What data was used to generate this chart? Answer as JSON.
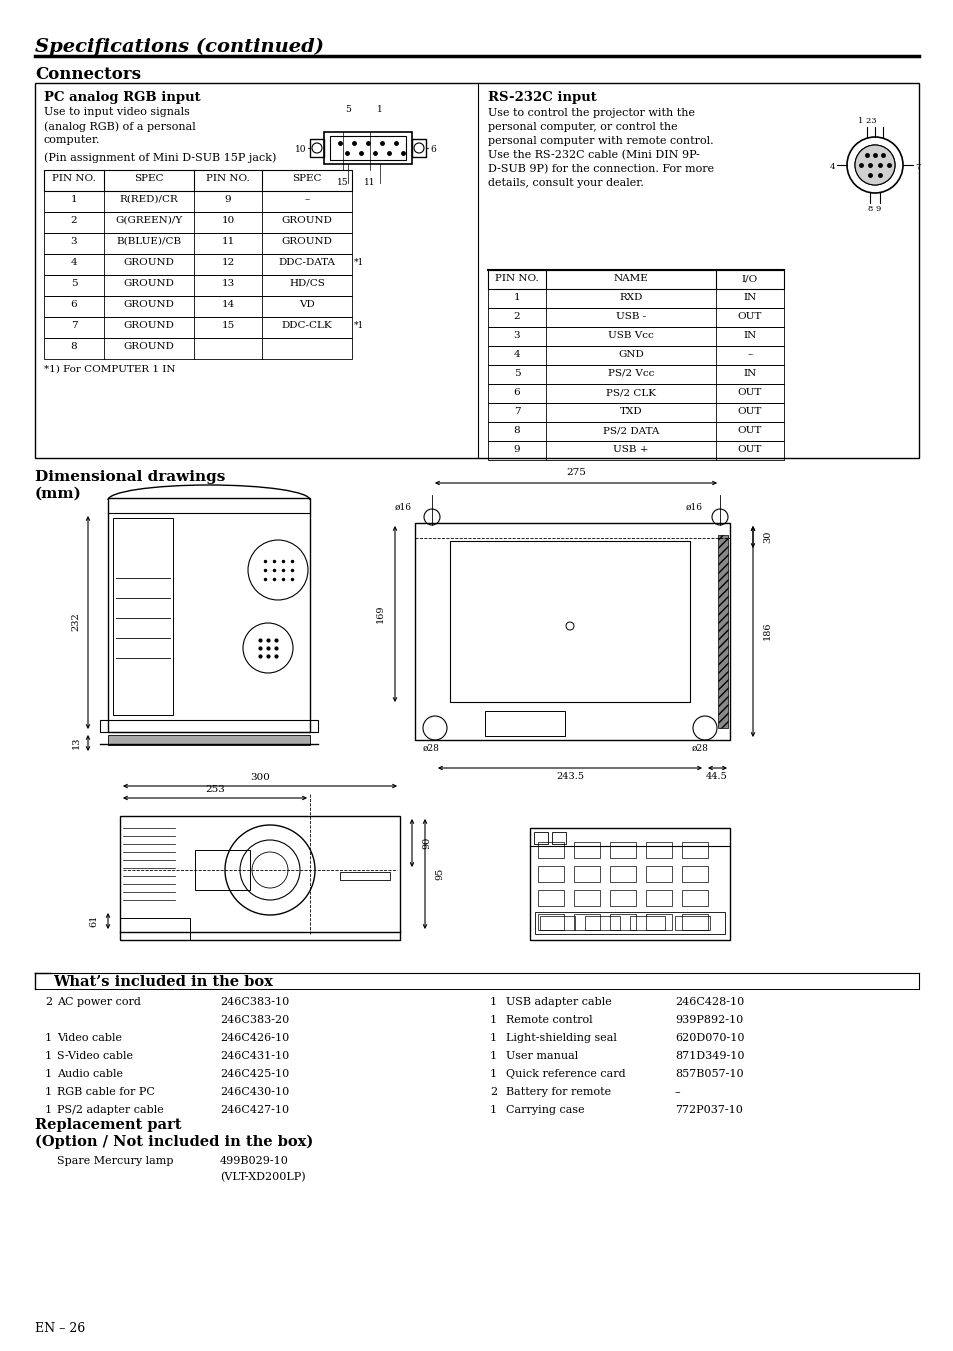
{
  "title": "Specifications (continued)",
  "page_label": "EN – 26",
  "section_connectors": "Connectors",
  "pc_rgb_title": "PC analog RGB input",
  "pc_rgb_desc_lines": [
    "Use to input video signals",
    "(analog RGB) of a personal",
    "computer."
  ],
  "pc_pin_assign": "(Pin assignment of Mini D-SUB 15P jack)",
  "pc_table_headers": [
    "PIN NO.",
    "SPEC",
    "PIN NO.",
    "SPEC"
  ],
  "pc_table_rows": [
    [
      "1",
      "R(RED)/CR",
      "9",
      "–"
    ],
    [
      "2",
      "G(GREEN)/Y",
      "10",
      "GROUND"
    ],
    [
      "3",
      "B(BLUE)/CB",
      "11",
      "GROUND"
    ],
    [
      "4",
      "GROUND",
      "12",
      "DDC-DATA"
    ],
    [
      "5",
      "GROUND",
      "13",
      "HD/CS"
    ],
    [
      "6",
      "GROUND",
      "14",
      "VD"
    ],
    [
      "7",
      "GROUND",
      "15",
      "DDC-CLK"
    ],
    [
      "8",
      "GROUND",
      "",
      ""
    ]
  ],
  "pc_table_asterisk_rows": [
    3,
    6
  ],
  "pc_footnote": "*1) For COMPUTER 1 IN",
  "rs232_title": "RS-232C input",
  "rs232_desc_lines": [
    "Use to control the projector with the",
    "personal computer, or control the",
    "personal computer with remote control.",
    "Use the RS-232C cable (Mini DIN 9P-",
    "D-SUB 9P) for the connection. For more",
    "details, consult your dealer."
  ],
  "rs232_table_headers": [
    "PIN NO.",
    "NAME",
    "I/O"
  ],
  "rs232_table_rows": [
    [
      "1",
      "RXD",
      "IN"
    ],
    [
      "2",
      "USB -",
      "OUT"
    ],
    [
      "3",
      "USB Vcc",
      "IN"
    ],
    [
      "4",
      "GND",
      "–"
    ],
    [
      "5",
      "PS/2 Vcc",
      "IN"
    ],
    [
      "6",
      "PS/2 CLK",
      "OUT"
    ],
    [
      "7",
      "TXD",
      "OUT"
    ],
    [
      "8",
      "PS/2 DATA",
      "OUT"
    ],
    [
      "9",
      "USB +",
      "OUT"
    ]
  ],
  "section_dimensional": "Dimensional drawings",
  "section_dimensional2": "(mm)",
  "whats_included_title": "What’s included in the box",
  "whats_included_left": [
    [
      "2",
      "AC power cord",
      "246C383-10"
    ],
    [
      "",
      "",
      "246C383-20"
    ],
    [
      "1",
      "Video cable",
      "246C426-10"
    ],
    [
      "1",
      "S-Video cable",
      "246C431-10"
    ],
    [
      "1",
      "Audio cable",
      "246C425-10"
    ],
    [
      "1",
      "RGB cable for PC",
      "246C430-10"
    ],
    [
      "1",
      "PS/2 adapter cable",
      "246C427-10"
    ]
  ],
  "whats_included_right": [
    [
      "1",
      "USB adapter cable",
      "246C428-10"
    ],
    [
      "1",
      "Remote control",
      "939P892-10"
    ],
    [
      "1",
      "Light-shielding seal",
      "620D070-10"
    ],
    [
      "1",
      "User manual",
      "871D349-10"
    ],
    [
      "1",
      "Quick reference card",
      "857B057-10"
    ],
    [
      "2",
      "Battery for remote",
      "–"
    ],
    [
      "1",
      "Carrying case",
      "772P037-10"
    ]
  ],
  "replacement_title1": "Replacement part",
  "replacement_title2": "(Option / Not included in the box)",
  "replacement_items": [
    [
      "",
      "Spare Mercury lamp",
      "499B029-10"
    ],
    [
      "",
      "",
      "(VLT-XD200LP)"
    ]
  ],
  "bg_color": "#ffffff"
}
